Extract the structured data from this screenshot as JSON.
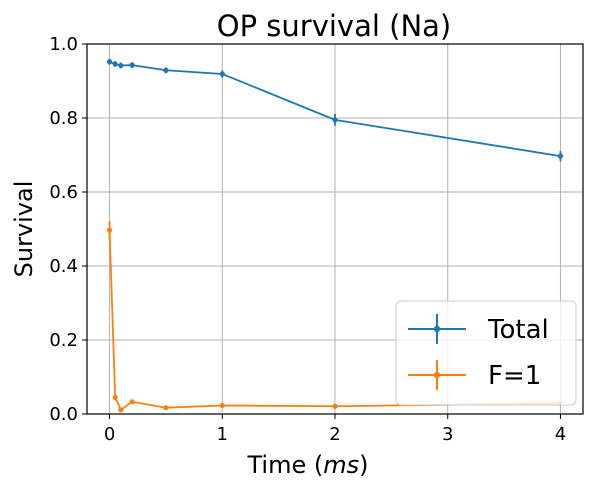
{
  "chart_data": {
    "type": "line",
    "title": "OP survival (Na)",
    "xlabel_prefix": "Time (",
    "xlabel_unit": "ms",
    "xlabel_suffix": ")",
    "ylabel": "Survival",
    "xlim": [
      -0.2,
      4.2
    ],
    "ylim": [
      0.0,
      1.0
    ],
    "xticks": [
      0,
      1,
      2,
      3,
      4
    ],
    "xtick_labels": [
      "0",
      "1",
      "2",
      "3",
      "4"
    ],
    "yticks": [
      0.0,
      0.2,
      0.4,
      0.6,
      0.8,
      1.0
    ],
    "ytick_labels": [
      "0.0",
      "0.2",
      "0.4",
      "0.6",
      "0.8",
      "1.0"
    ],
    "grid": true,
    "legend_position": "lower-right",
    "x": [
      0,
      0.05,
      0.1,
      0.2,
      0.5,
      1,
      2,
      4
    ],
    "series": [
      {
        "name": "Total",
        "color": "#1f77b4",
        "values": [
          0.952,
          0.946,
          0.942,
          0.943,
          0.929,
          0.919,
          0.795,
          0.697
        ],
        "errors": [
          0.008,
          0.008,
          0.008,
          0.008,
          0.008,
          0.01,
          0.016,
          0.014
        ]
      },
      {
        "name": "F=1",
        "color": "#ff7f0e",
        "values": [
          0.497,
          0.045,
          0.011,
          0.033,
          0.017,
          0.023,
          0.021,
          0.029
        ],
        "errors": [
          0.025,
          0.008,
          0.004,
          0.004,
          0.003,
          0.003,
          0.003,
          0.003
        ]
      }
    ]
  }
}
